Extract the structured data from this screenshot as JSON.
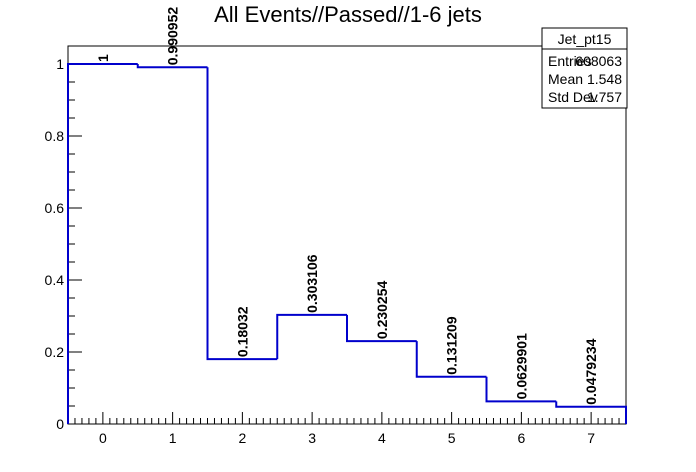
{
  "chart_data": {
    "type": "bar",
    "style": "step-histogram",
    "title": "All Events//Passed//1-6 jets",
    "xlabel": "",
    "ylabel": "",
    "x_bin_centers": [
      0,
      1,
      2,
      3,
      4,
      5,
      6,
      7
    ],
    "values": [
      1,
      0.990952,
      0.18032,
      0.303106,
      0.230254,
      0.131209,
      0.0629901,
      0.0479234
    ],
    "value_labels": [
      "1",
      "0.990952",
      "0.18032",
      "0.303106",
      "0.230254",
      "0.131209",
      "0.0629901",
      "0.0479234"
    ],
    "xlim": [
      -0.5,
      7.5
    ],
    "ylim": [
      0,
      1.05
    ],
    "x_ticks": [
      "0",
      "1",
      "2",
      "3",
      "4",
      "5",
      "6",
      "7"
    ],
    "y_ticks": [
      "0",
      "0.2",
      "0.4",
      "0.6",
      "0.8",
      "1"
    ],
    "y_tick_values": [
      0,
      0.2,
      0.4,
      0.6,
      0.8,
      1
    ],
    "grid": false,
    "line_color": "#0000cc",
    "stats_box": {
      "title": "Jet_pt15",
      "placement": "top-right",
      "rows": [
        {
          "label": "Entries",
          "value": "608063"
        },
        {
          "label": "Mean",
          "value": "1.548"
        },
        {
          "label": "Std Dev",
          "value": "1.757"
        }
      ]
    }
  }
}
